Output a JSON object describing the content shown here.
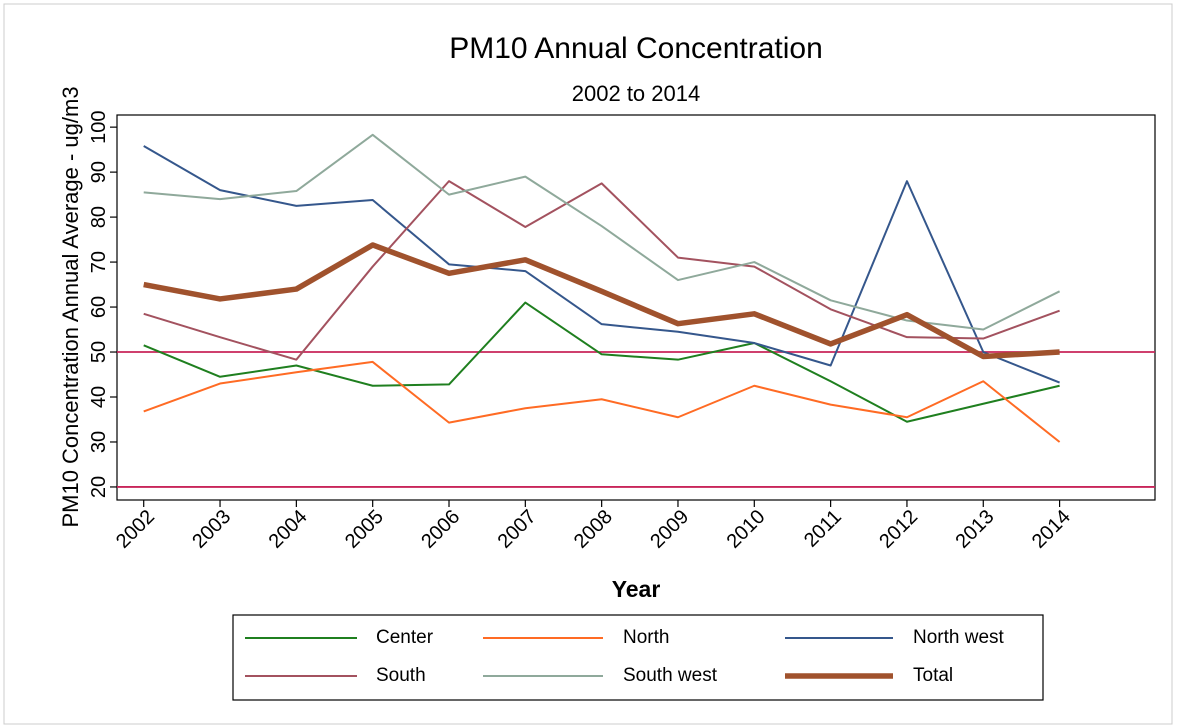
{
  "chart_data": {
    "type": "line",
    "title": "PM10 Annual Concentration",
    "subtitle": "2002 to 2014",
    "y_label": "PM10 Concentration Annual Average - ug/m3",
    "x_label": "Year",
    "x": [
      2002,
      2003,
      2004,
      2005,
      2006,
      2007,
      2008,
      2009,
      2010,
      2011,
      2012,
      2013,
      2014
    ],
    "xlim": [
      2001.65,
      2015.25
    ],
    "ylim": [
      17.1,
      102.7
    ],
    "yticks": [
      20,
      30,
      40,
      50,
      60,
      70,
      80,
      90,
      100
    ],
    "hlines": [
      50,
      20
    ],
    "hline_color": "#c8245a",
    "series": [
      {
        "name": "Center",
        "color": "#1f7f1f",
        "width": 2,
        "values": [
          51.5,
          44.5,
          47,
          42.5,
          42.8,
          61,
          49.5,
          48.3,
          52,
          43.5,
          34.5,
          38.5,
          42.5
        ]
      },
      {
        "name": "North",
        "color": "#ff6b24",
        "width": 2,
        "values": [
          36.8,
          43,
          45.5,
          47.8,
          34.3,
          37.5,
          39.5,
          35.5,
          42.5,
          38.3,
          35.5,
          43.5,
          30
        ]
      },
      {
        "name": "North west",
        "color": "#35578c",
        "width": 2,
        "values": [
          95.8,
          86,
          82.5,
          83.8,
          69.5,
          68,
          56.2,
          54.5,
          52,
          47,
          88,
          50,
          43.2
        ]
      },
      {
        "name": "South",
        "color": "#a3525f",
        "width": 2,
        "values": [
          58.5,
          53.3,
          48.3,
          69,
          88,
          77.8,
          87.5,
          71,
          69,
          59.5,
          53.3,
          53,
          59.2
        ]
      },
      {
        "name": "South west",
        "color": "#8fa99b",
        "width": 2,
        "values": [
          85.5,
          84,
          85.8,
          98.3,
          85,
          89,
          78,
          66,
          70,
          61.5,
          57,
          55,
          63.5
        ]
      },
      {
        "name": "Total",
        "color": "#a0522d",
        "width": 5.5,
        "values": [
          65,
          61.8,
          64,
          73.8,
          67.5,
          70.5,
          63.5,
          56.3,
          58.5,
          51.8,
          58.3,
          49,
          50
        ]
      }
    ]
  }
}
